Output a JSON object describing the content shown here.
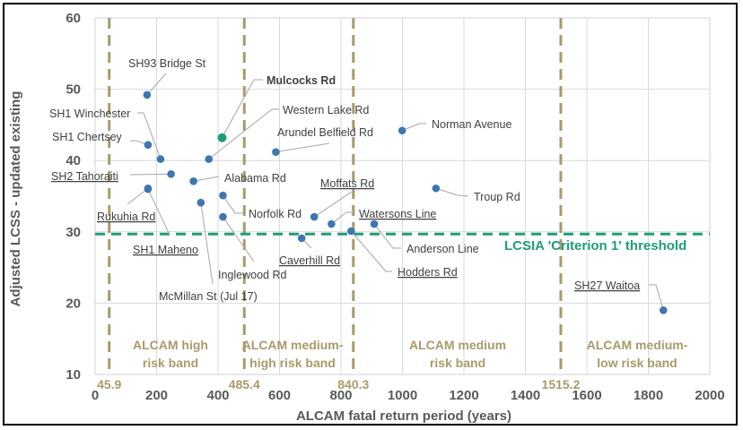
{
  "chart_data": {
    "type": "scatter",
    "title": "",
    "xlabel": "ALCAM fatal return period (years)",
    "ylabel": "Adjusted LCSS - updated existing",
    "xlim": [
      0,
      2000
    ],
    "ylim": [
      10,
      60
    ],
    "x_ticks": [
      "0",
      "200",
      "400",
      "600",
      "800",
      "1000",
      "1200",
      "1400",
      "1600",
      "1800",
      "2000"
    ],
    "y_ticks": [
      "10",
      "20",
      "30",
      "40",
      "50",
      "60"
    ],
    "grid": true,
    "legend": "none",
    "colors": {
      "point": "#3E77B0",
      "highlight": "#1E9E78",
      "band_line": "#A89A6A",
      "threshold": "#1E9E78",
      "grid": "#D9D9D9"
    },
    "points": [
      {
        "name": "SH93 Bridge St",
        "x": 169,
        "y": 49.2
      },
      {
        "name": "SH1 Winchester",
        "x": 213,
        "y": 40.2
      },
      {
        "name": "SH1 Chertsey",
        "x": 172,
        "y": 42.2
      },
      {
        "name": "SH2 Tahoraiti",
        "x": 247,
        "y": 38.1
      },
      {
        "name": "Rukuhia Rd",
        "x": 172,
        "y": 36.1
      },
      {
        "name": "SH1 Maheno",
        "x": 172,
        "y": 36.0
      },
      {
        "name": "McMillan St (Jul 17)",
        "x": 344,
        "y": 34.1
      },
      {
        "name": "Inglewood Rd",
        "x": 416,
        "y": 32.1
      },
      {
        "name": "Norfolk Rd",
        "x": 416,
        "y": 35.1
      },
      {
        "name": "Alabama Rd",
        "x": 320,
        "y": 37.1
      },
      {
        "name": "Western Lake Rd",
        "x": 370,
        "y": 40.2
      },
      {
        "name": "Mulcocks Rd",
        "x": 413,
        "y": 43.2,
        "highlight": true
      },
      {
        "name": "Arundel Belfield Rd",
        "x": 588,
        "y": 41.2
      },
      {
        "name": "Caverhill Rd",
        "x": 672,
        "y": 29.1
      },
      {
        "name": "Moffats Rd",
        "x": 713,
        "y": 32.1
      },
      {
        "name": "Watersons Line",
        "x": 769,
        "y": 31.1
      },
      {
        "name": "Anderson Line",
        "x": 908,
        "y": 31.1
      },
      {
        "name": "Hodders Rd",
        "x": 833,
        "y": 30.1
      },
      {
        "name": "Norman Avenue",
        "x": 999,
        "y": 44.2
      },
      {
        "name": "Troup Rd",
        "x": 1109,
        "y": 36.1
      },
      {
        "name": "SH27 Waitoa",
        "x": 1849,
        "y": 19.0
      }
    ],
    "band_boundaries": [
      {
        "x": 45.9,
        "label": "45.9"
      },
      {
        "x": 485.4,
        "label": "485.4"
      },
      {
        "x": 840.3,
        "label": "840.3"
      },
      {
        "x": 1515.2,
        "label": "1515.2"
      }
    ],
    "bands": [
      {
        "line1": "ALCAM high",
        "line2": "risk band",
        "from": 45.9,
        "to": 485.4
      },
      {
        "line1": "ALCAM medium-",
        "line2": "high risk band",
        "from": 485.4,
        "to": 840.3
      },
      {
        "line1": "ALCAM medium",
        "line2": "risk band",
        "from": 840.3,
        "to": 1515.2
      },
      {
        "line1": "ALCAM medium-",
        "line2": "low risk band",
        "from": 1515.2,
        "to": 2000
      }
    ],
    "threshold": {
      "y": 29.7,
      "label": "LCSIA 'Criterion 1' threshold"
    }
  }
}
